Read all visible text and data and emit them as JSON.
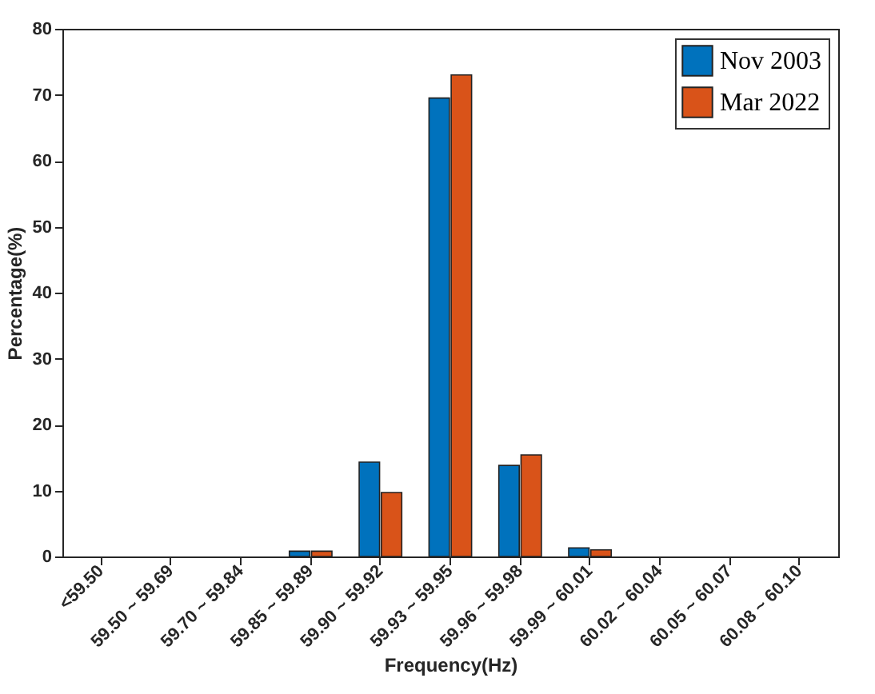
{
  "chart_data": {
    "type": "bar",
    "xlabel": "Frequency(Hz)",
    "ylabel": "Percentage(%)",
    "categories": [
      "<59.50",
      "59.50 ~ 59.69",
      "59.70 ~ 59.84",
      "59.85 ~ 59.89",
      "59.90 ~ 59.92",
      "59.93 ~ 59.95",
      "59.96 ~ 59.98",
      "59.99 ~ 60.01",
      "60.02 ~ 60.04",
      "60.05 ~ 60.07",
      "60.08 ~ 60.10"
    ],
    "series": [
      {
        "name": "Nov 2003",
        "color": "#0072bd",
        "values": [
          0,
          0,
          0,
          0.8,
          14.3,
          69.5,
          13.8,
          1.3,
          0,
          0,
          0
        ]
      },
      {
        "name": "Mar 2022",
        "color": "#d95319",
        "values": [
          0,
          0,
          0,
          0.8,
          9.7,
          73,
          15.4,
          1.0,
          0,
          0,
          0
        ]
      }
    ],
    "ylim": [
      0,
      80
    ],
    "yticks": [
      0,
      10,
      20,
      30,
      40,
      50,
      60,
      70,
      80
    ],
    "legend": "top right",
    "grid": false
  }
}
